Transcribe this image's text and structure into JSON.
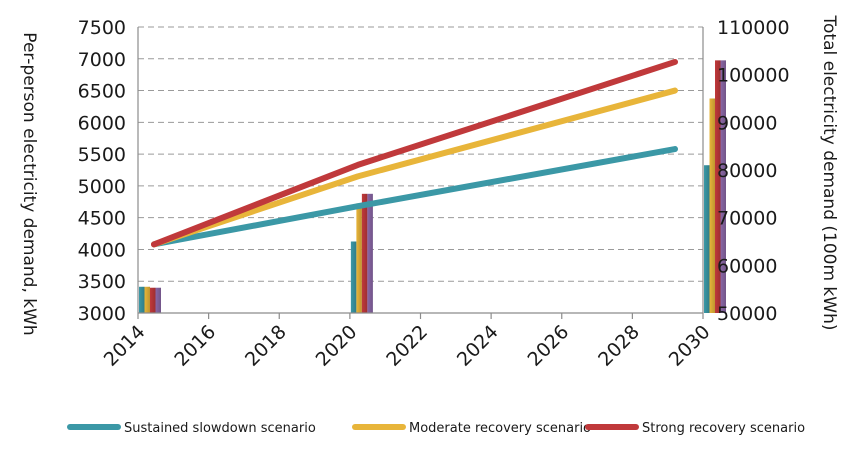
{
  "chart_data": {
    "type": "line",
    "title": "",
    "xlabel": "",
    "ylabel": "Per-person electricity demand, kWh",
    "y2label": "Total electricity demand (100m kWh)",
    "xlim": [
      2014,
      2030
    ],
    "ylim": [
      3000,
      7500
    ],
    "y2lim": [
      50000,
      110000
    ],
    "x_ticks": [
      "2014",
      "2016",
      "2018",
      "2020",
      "2022",
      "2024",
      "2026",
      "2028",
      "2030"
    ],
    "y_ticks": [
      "3000",
      "3500",
      "4000",
      "4500",
      "5000",
      "5500",
      "6000",
      "6500",
      "7000",
      "7500"
    ],
    "y2_ticks": [
      "50000",
      "60000",
      "70000",
      "80000",
      "90000",
      "100000",
      "110000"
    ],
    "grid": "horizontal dashed",
    "legend_position": "bottom",
    "series": [
      {
        "name": "Sustained slowdown scenario",
        "color": "#3b98a6",
        "line": {
          "x": [
            2014,
            2020,
            2030
          ],
          "y": [
            4080,
            4680,
            5580
          ]
        },
        "bar": {
          "x": [
            2014,
            2020,
            2030
          ],
          "y": [
            55500,
            65000,
            81000
          ]
        }
      },
      {
        "name": "Moderate recovery scenario",
        "color": "#e8b53a",
        "line": {
          "x": [
            2014,
            2020,
            2030
          ],
          "y": [
            4080,
            5150,
            6500
          ]
        },
        "bar": {
          "x": [
            2014,
            2020,
            2030
          ],
          "y": [
            55500,
            73000,
            95000
          ]
        }
      },
      {
        "name": "Strong recovery scenario",
        "color": "#c0393b",
        "line": {
          "x": [
            2014,
            2020,
            2030
          ],
          "y": [
            4080,
            5330,
            6950
          ]
        },
        "bar": {
          "x": [
            2014,
            2020,
            2030
          ],
          "y": [
            55300,
            75000,
            103000
          ]
        }
      }
    ],
    "extra_bar": {
      "color": "#8a67a6",
      "x": [
        2014,
        2020,
        2030
      ],
      "y": [
        55300,
        75000,
        103000
      ]
    }
  }
}
